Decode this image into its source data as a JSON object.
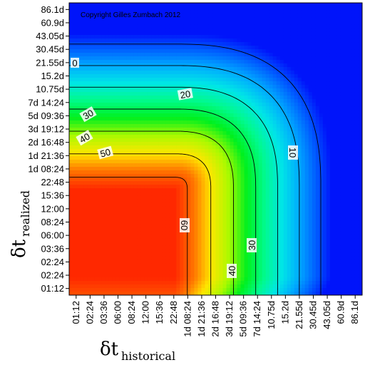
{
  "chart_data": {
    "type": "heatmap",
    "copyright": "Copyright Gilles Zumbach 2012",
    "xlabel": {
      "main": "δt",
      "sub": "historical"
    },
    "ylabel": {
      "main": "δt",
      "sub": "realized"
    },
    "x_ticks": [
      "01:12",
      "02:24",
      "03:36",
      "06:00",
      "08:24",
      "12:00",
      "15:36",
      "22:48",
      "1d 08:24",
      "1d 21:36",
      "2d 16:48",
      "3d 19:12",
      "5d 09:36",
      "7d 14:24",
      "10.75d",
      "15.2d",
      "21.55d",
      "30.45d",
      "43.05d",
      "60.9d",
      "86.1d"
    ],
    "y_ticks": [
      "01:12",
      "02:24",
      "02:24",
      "03:36",
      "06:00",
      "08:24",
      "12:00",
      "15:36",
      "22:48",
      "1d 08:24",
      "1d 21:36",
      "2d 16:48",
      "3d 19:12",
      "5d 09:36",
      "7d 14:24",
      "10.75d",
      "15.2d",
      "21.55d",
      "30.45d",
      "43.05d",
      "60.9d",
      "86.1d"
    ],
    "contour_levels": [
      0,
      10,
      20,
      30,
      40,
      50,
      60
    ],
    "contour_labels": [
      "0",
      "10",
      "20",
      "30",
      "40",
      "50",
      "60"
    ],
    "peak_region": {
      "x_range": [
        "01:12",
        "22:48"
      ],
      "y_range": [
        "02:24",
        "22:48"
      ],
      "value_approx": 65
    },
    "colorscale": [
      "#0010ff",
      "#0060ff",
      "#00c8ff",
      "#00ff80",
      "#00ff00",
      "#b0ff00",
      "#ffff00",
      "#ff8000",
      "#ff2000"
    ]
  }
}
